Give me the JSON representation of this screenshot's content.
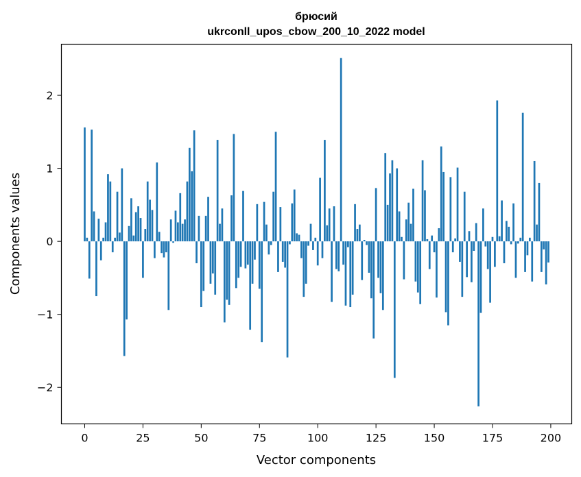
{
  "chart_data": {
    "type": "bar",
    "title_line1": "брюсий",
    "title_line2": "ukrconll_upos_cbow_200_10_2022 model",
    "xlabel": "Vector components",
    "ylabel": "Components values",
    "xlim": [
      -10,
      209
    ],
    "ylim": [
      -2.5,
      2.7
    ],
    "x_ticks": [
      0,
      25,
      50,
      75,
      100,
      125,
      150,
      175,
      200
    ],
    "y_ticks": [
      -2,
      -1,
      0,
      1,
      2
    ],
    "y_tick_labels": [
      "−2",
      "−1",
      "0",
      "1",
      "2"
    ],
    "grid": false,
    "legend": "none",
    "bar_color": "#1f77b4",
    "x": [
      0,
      1,
      2,
      3,
      4,
      5,
      6,
      7,
      8,
      9,
      10,
      11,
      12,
      13,
      14,
      15,
      16,
      17,
      18,
      19,
      20,
      21,
      22,
      23,
      24,
      25,
      26,
      27,
      28,
      29,
      30,
      31,
      32,
      33,
      34,
      35,
      36,
      37,
      38,
      39,
      40,
      41,
      42,
      43,
      44,
      45,
      46,
      47,
      48,
      49,
      50,
      51,
      52,
      53,
      54,
      55,
      56,
      57,
      58,
      59,
      60,
      61,
      62,
      63,
      64,
      65,
      66,
      67,
      68,
      69,
      70,
      71,
      72,
      73,
      74,
      75,
      76,
      77,
      78,
      79,
      80,
      81,
      82,
      83,
      84,
      85,
      86,
      87,
      88,
      89,
      90,
      91,
      92,
      93,
      94,
      95,
      96,
      97,
      98,
      99,
      100,
      101,
      102,
      103,
      104,
      105,
      106,
      107,
      108,
      109,
      110,
      111,
      112,
      113,
      114,
      115,
      116,
      117,
      118,
      119,
      120,
      121,
      122,
      123,
      124,
      125,
      126,
      127,
      128,
      129,
      130,
      131,
      132,
      133,
      134,
      135,
      136,
      137,
      138,
      139,
      140,
      141,
      142,
      143,
      144,
      145,
      146,
      147,
      148,
      149,
      150,
      151,
      152,
      153,
      154,
      155,
      156,
      157,
      158,
      159,
      160,
      161,
      162,
      163,
      164,
      165,
      166,
      167,
      168,
      169,
      170,
      171,
      172,
      173,
      174,
      175,
      176,
      177,
      178,
      179,
      180,
      181,
      182,
      183,
      184,
      185,
      186,
      187,
      188,
      189,
      190,
      191,
      192,
      193,
      194,
      195,
      196,
      197,
      198,
      199
    ],
    "values": [
      1.56,
      0.05,
      -0.51,
      1.53,
      0.41,
      -0.75,
      0.31,
      -0.26,
      0.05,
      0.26,
      0.92,
      0.82,
      -0.15,
      0.05,
      0.68,
      0.12,
      1.0,
      -1.57,
      -1.07,
      0.21,
      0.59,
      0.08,
      0.4,
      0.48,
      0.32,
      -0.5,
      0.17,
      0.82,
      0.57,
      0.43,
      -0.23,
      1.08,
      0.13,
      -0.16,
      -0.22,
      -0.15,
      -0.94,
      0.3,
      -0.02,
      0.42,
      0.26,
      0.66,
      0.24,
      0.3,
      0.82,
      1.28,
      0.96,
      1.52,
      -0.3,
      0.35,
      -0.9,
      -0.68,
      0.35,
      0.61,
      -0.58,
      -0.44,
      -0.73,
      1.39,
      0.24,
      0.45,
      -1.11,
      -0.8,
      -0.87,
      0.63,
      1.47,
      -0.64,
      -0.5,
      -0.35,
      0.69,
      -0.37,
      -0.32,
      -1.21,
      -0.58,
      -0.25,
      0.51,
      -0.65,
      -1.38,
      0.54,
      0.23,
      -0.18,
      -0.05,
      0.68,
      1.5,
      -0.42,
      0.47,
      -0.28,
      -0.36,
      -1.59,
      -0.04,
      0.52,
      0.71,
      0.11,
      0.09,
      -0.23,
      -0.76,
      -0.58,
      -0.06,
      0.24,
      -0.12,
      0.05,
      -0.33,
      0.87,
      -0.23,
      1.39,
      0.22,
      0.45,
      -0.83,
      0.48,
      -0.38,
      -0.41,
      2.51,
      -0.32,
      -0.88,
      -0.08,
      -0.9,
      -0.73,
      0.51,
      0.17,
      0.23,
      -0.53,
      0.02,
      -0.05,
      -0.43,
      -0.78,
      -1.33,
      0.73,
      -0.5,
      -0.71,
      -0.94,
      1.21,
      0.5,
      0.93,
      1.11,
      -1.87,
      1.0,
      0.41,
      0.06,
      -0.52,
      0.3,
      0.53,
      0.24,
      0.72,
      -0.55,
      -0.7,
      -0.86,
      1.11,
      0.7,
      0.03,
      -0.38,
      0.08,
      -0.15,
      -0.77,
      0.18,
      1.3,
      0.95,
      -0.97,
      -1.15,
      0.88,
      -0.15,
      0.04,
      1.01,
      -0.28,
      -0.76,
      0.68,
      -0.49,
      0.14,
      -0.56,
      -0.13,
      0.25,
      -2.26,
      -0.98,
      0.45,
      -0.07,
      -0.38,
      -0.84,
      0.06,
      -0.35,
      1.93,
      0.07,
      0.56,
      -0.3,
      0.28,
      0.2,
      -0.04,
      0.52,
      -0.5,
      -0.03,
      0.05,
      1.76,
      -0.42,
      -0.19,
      0.05,
      -0.55,
      1.1,
      0.23,
      0.8,
      -0.42,
      -0.11,
      -0.59,
      -0.29
    ]
  }
}
